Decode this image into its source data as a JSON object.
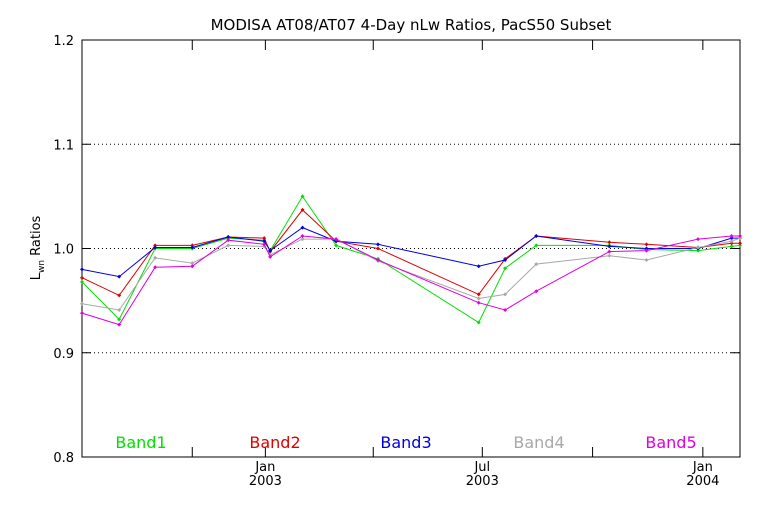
{
  "chart_data": {
    "type": "line",
    "title": "MODISA AT08/AT07 4-Day nLw Ratios, PacS50 Subset",
    "ylabel_main": "L",
    "ylabel_sub": "wn",
    "ylabel_rest": " Ratios",
    "ylim": [
      0.8,
      1.2
    ],
    "xlim": [
      "2002-08-01",
      "2004-02-01"
    ],
    "y_ticks": [
      {
        "value": 0.8,
        "label": "0.8"
      },
      {
        "value": 0.9,
        "label": "0.9"
      },
      {
        "value": 1.0,
        "label": "1.0"
      },
      {
        "value": 1.1,
        "label": "1.1"
      },
      {
        "value": 1.2,
        "label": "1.2"
      }
    ],
    "grid_y": [
      0.9,
      1.0,
      1.1
    ],
    "x_major_ticks": [
      {
        "date": "2003-01-01",
        "label1": "Jan",
        "label2": "2003"
      },
      {
        "date": "2003-07-01",
        "label1": "Jul",
        "label2": "2003"
      },
      {
        "date": "2004-01-01",
        "label1": "Jan",
        "label2": "2004"
      }
    ],
    "x_minor_ticks": [
      "2002-11-01",
      "2003-04-01",
      "2003-10-01"
    ],
    "x": [
      "2002-08-01",
      "2002-09-01",
      "2002-10-01",
      "2002-11-01",
      "2002-12-01",
      "2002-12-31",
      "2003-01-05",
      "2003-02-01",
      "2003-03-01",
      "2003-04-05",
      "2003-06-28",
      "2003-07-20",
      "2003-08-15",
      "2003-10-15",
      "2003-11-15",
      "2003-12-28",
      "2004-01-25",
      "2004-02-01"
    ],
    "series": [
      {
        "name": "Band1",
        "color": "#00e000",
        "values": [
          0.968,
          0.932,
          1.0,
          1.0,
          1.01,
          1.008,
          0.998,
          1.05,
          1.003,
          0.99,
          0.929,
          0.981,
          1.003,
          1.003,
          0.999,
          0.998,
          1.002,
          1.003
        ]
      },
      {
        "name": "Band2",
        "color": "#e00000",
        "values": [
          0.972,
          0.955,
          1.003,
          1.003,
          1.011,
          1.01,
          0.997,
          1.037,
          1.007,
          1.0,
          0.956,
          0.99,
          1.012,
          1.006,
          1.004,
          1.001,
          1.005,
          1.005
        ]
      },
      {
        "name": "Band3",
        "color": "#0000e0",
        "values": [
          0.98,
          0.973,
          1.001,
          1.001,
          1.011,
          1.007,
          0.998,
          1.02,
          1.007,
          1.004,
          0.983,
          0.989,
          1.012,
          1.002,
          1.0,
          1.0,
          1.01,
          1.01
        ]
      },
      {
        "name": "Band4",
        "color": "#a8a8a8",
        "values": [
          0.947,
          0.941,
          0.991,
          0.986,
          1.003,
          1.002,
          0.994,
          1.009,
          1.009,
          0.988,
          0.952,
          0.956,
          0.985,
          0.993,
          0.989,
          1.001,
          1.007,
          1.01
        ]
      },
      {
        "name": "Band5",
        "color": "#e000e0",
        "values": [
          0.938,
          0.927,
          0.982,
          0.983,
          1.008,
          1.004,
          0.992,
          1.012,
          1.009,
          0.989,
          0.948,
          0.941,
          0.959,
          0.997,
          0.998,
          1.009,
          1.012,
          1.012
        ]
      }
    ],
    "legend_placement": "bottom"
  }
}
